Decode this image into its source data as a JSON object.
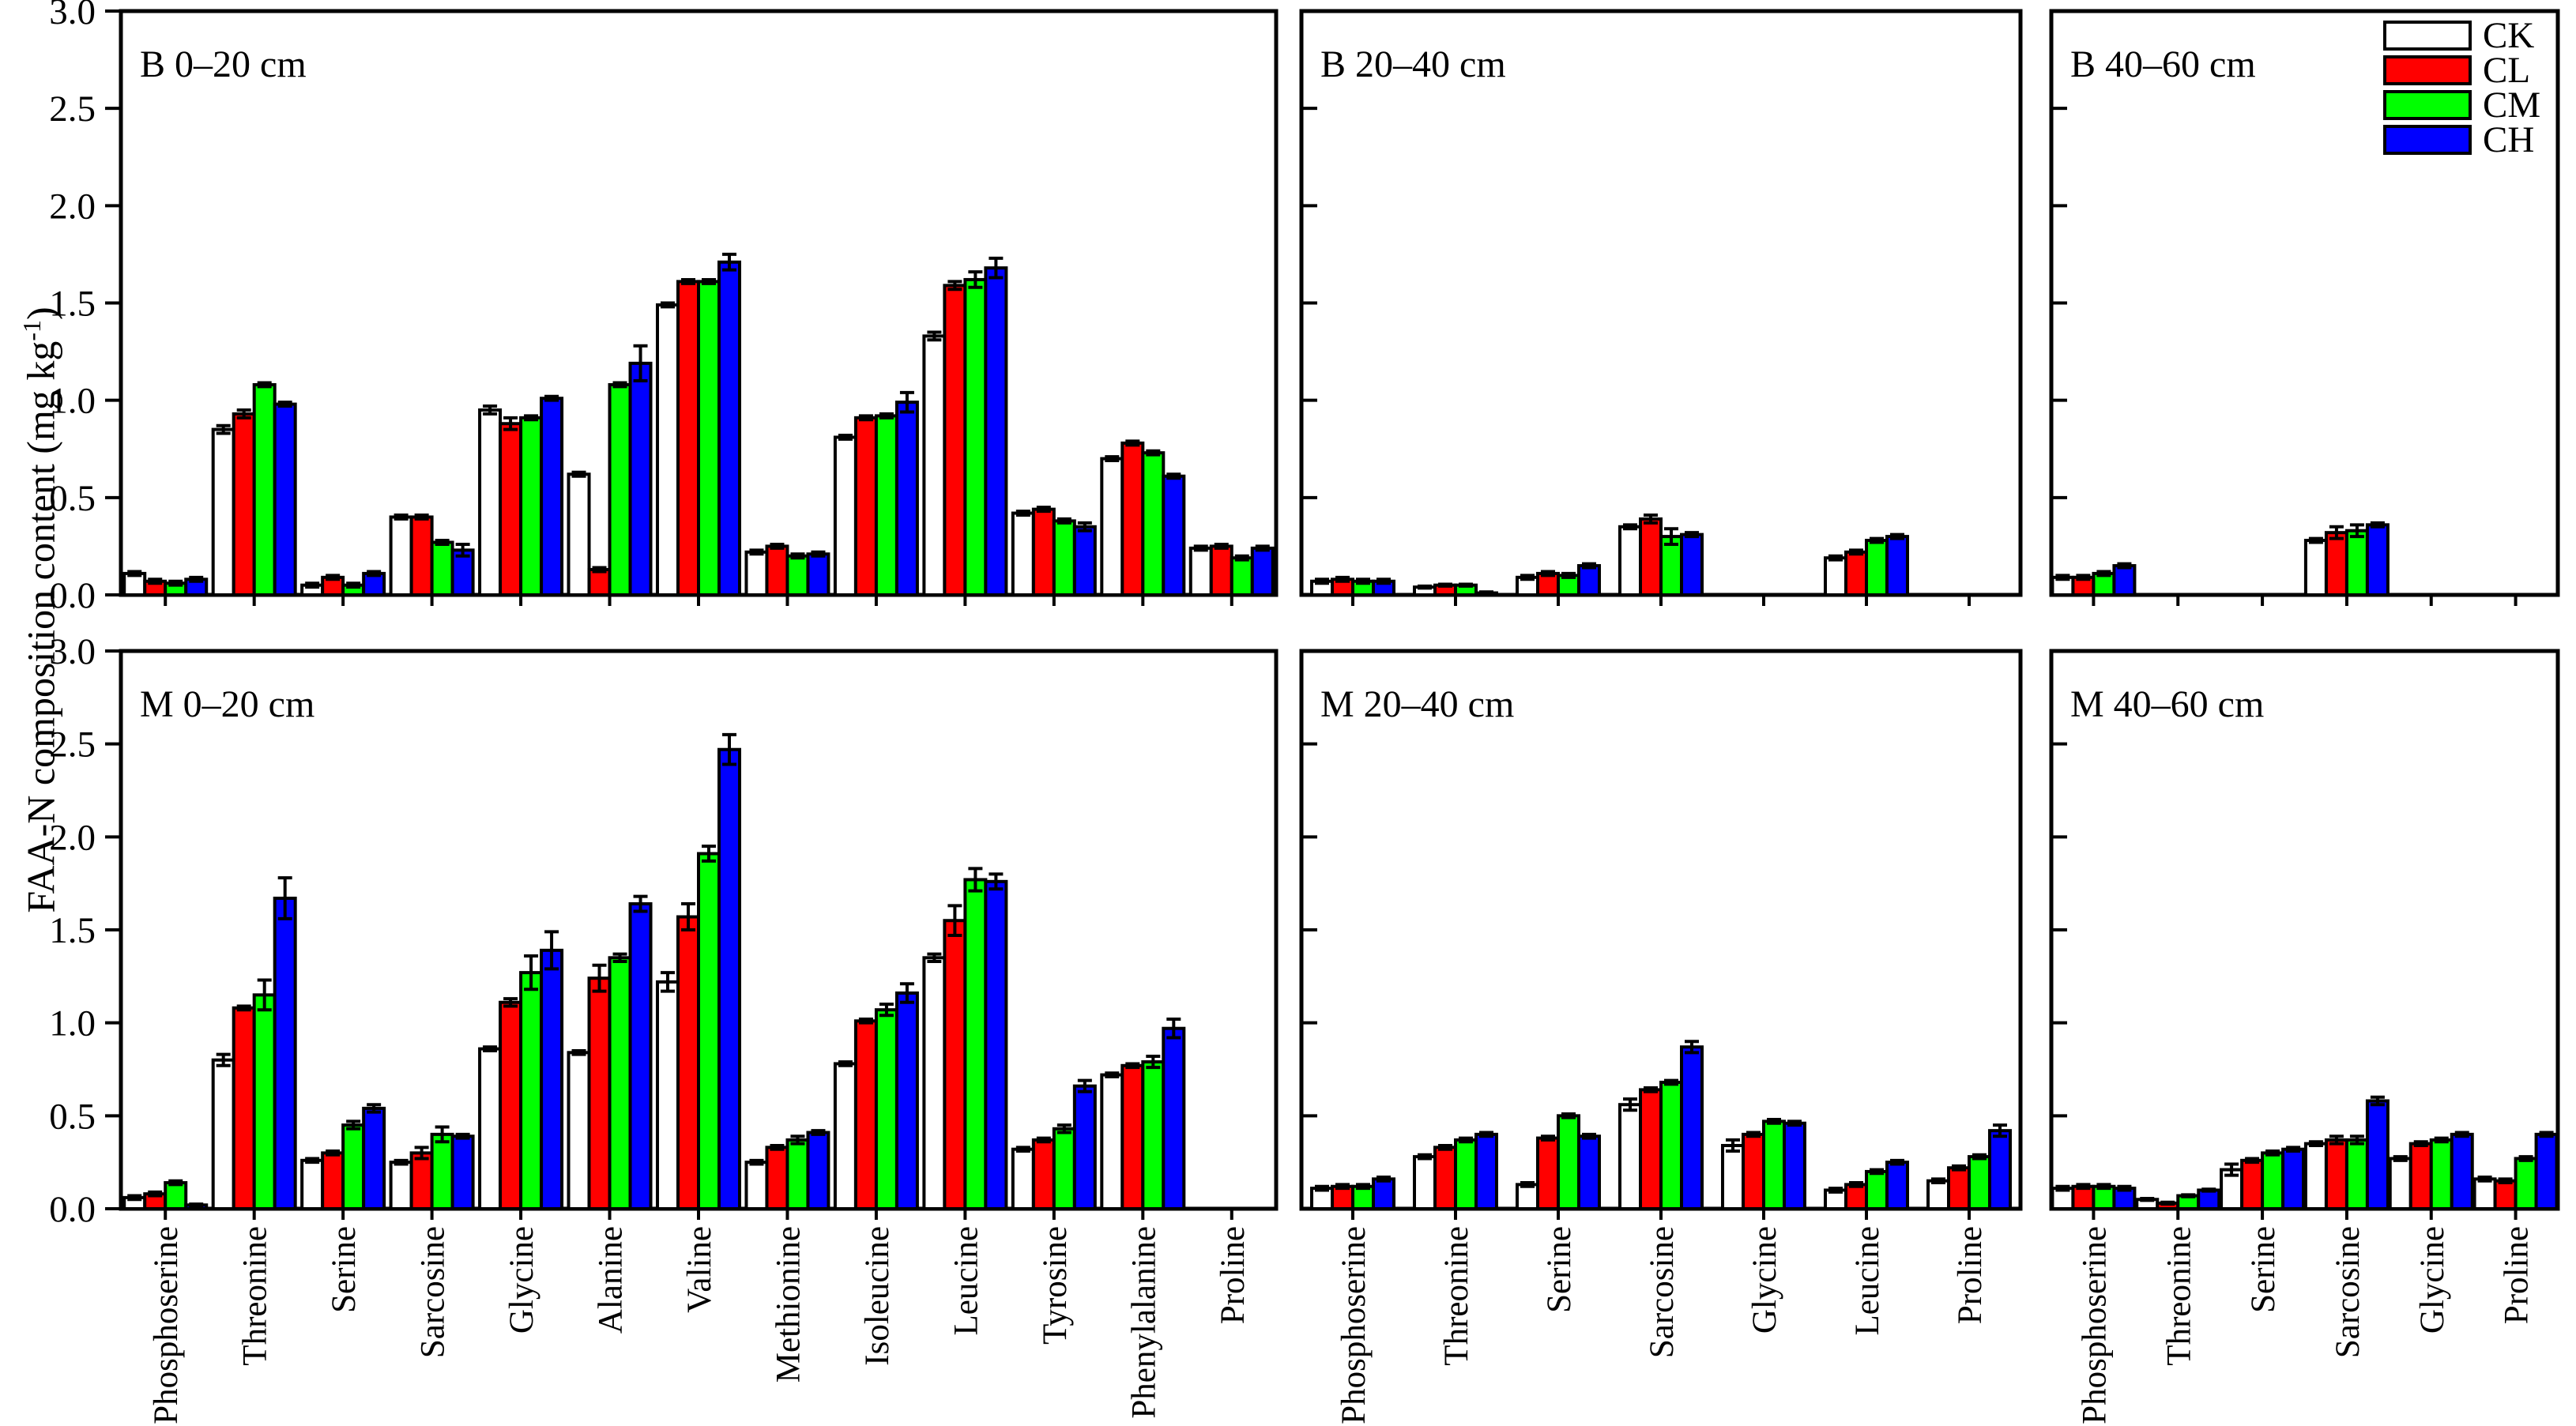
{
  "figure": {
    "y_axis_title_prefix": "FAA-N composition content (mg kg",
    "y_axis_title_sup": "-1",
    "y_axis_title_suffix": ")",
    "y_tick_labels": [
      "0.0",
      "0.5",
      "1.0",
      "1.5",
      "2.0",
      "2.5",
      "3.0"
    ],
    "ymin": 0,
    "ymax": 3
  },
  "legend": [
    {
      "label": "CK",
      "color": "#ffffff"
    },
    {
      "label": "CL",
      "color": "#ff0000"
    },
    {
      "label": "CM",
      "color": "#00ff00"
    },
    {
      "label": "CH",
      "color": "#0000ff"
    }
  ],
  "chart_data": [
    {
      "type": "bar",
      "title": "B 0–20 cm",
      "ylabel": "FAA-N composition content (mg kg-1)",
      "ylim": [
        0,
        3
      ],
      "categories": [
        "Phosphoserine",
        "Threonine",
        "Serine",
        "Sarcosine",
        "Glycine",
        "Alanine",
        "Valine",
        "Methionine",
        "Isoleucine",
        "Leucine",
        "Tyrosine",
        "Phenylalanine",
        "Proline"
      ],
      "series": [
        {
          "name": "CK",
          "color": "#ffffff",
          "values": [
            0.11,
            0.85,
            0.05,
            0.4,
            0.95,
            0.62,
            1.49,
            0.22,
            0.81,
            1.33,
            0.42,
            0.7,
            0.24
          ],
          "errors": [
            0.01,
            0.02,
            0.01,
            0.01,
            0.02,
            0.01,
            0.01,
            0.01,
            0.01,
            0.02,
            0.01,
            0.01,
            0.01
          ]
        },
        {
          "name": "CL",
          "color": "#ff0000",
          "values": [
            0.07,
            0.93,
            0.09,
            0.4,
            0.88,
            0.13,
            1.61,
            0.25,
            0.91,
            1.59,
            0.44,
            0.78,
            0.25
          ],
          "errors": [
            0.01,
            0.02,
            0.01,
            0.01,
            0.03,
            0.01,
            0.01,
            0.01,
            0.01,
            0.02,
            0.01,
            0.01,
            0.01
          ]
        },
        {
          "name": "CM",
          "color": "#00ff00",
          "values": [
            0.06,
            1.08,
            0.05,
            0.27,
            0.91,
            1.08,
            1.61,
            0.2,
            0.92,
            1.62,
            0.38,
            0.73,
            0.19
          ],
          "errors": [
            0.01,
            0.01,
            0.01,
            0.01,
            0.01,
            0.01,
            0.01,
            0.01,
            0.01,
            0.04,
            0.01,
            0.01,
            0.01
          ]
        },
        {
          "name": "CH",
          "color": "#0000ff",
          "values": [
            0.08,
            0.98,
            0.11,
            0.23,
            1.01,
            1.19,
            1.71,
            0.21,
            0.99,
            1.68,
            0.35,
            0.61,
            0.24
          ],
          "errors": [
            0.01,
            0.01,
            0.01,
            0.03,
            0.01,
            0.09,
            0.04,
            0.01,
            0.05,
            0.05,
            0.02,
            0.01,
            0.01
          ]
        }
      ]
    },
    {
      "type": "bar",
      "title": "B 20–40 cm",
      "ylim": [
        0,
        3
      ],
      "categories": [
        "Phosphoserine",
        "Threonine",
        "Serine",
        "Sarcosine",
        "Glycine",
        "Leucine",
        "Proline"
      ],
      "series": [
        {
          "name": "CK",
          "color": "#ffffff",
          "values": [
            0.07,
            0.04,
            0.09,
            0.35,
            null,
            0.19,
            null
          ],
          "errors": [
            0.01,
            0.005,
            0.01,
            0.01,
            null,
            0.01,
            null
          ]
        },
        {
          "name": "CL",
          "color": "#ff0000",
          "values": [
            0.08,
            0.05,
            0.11,
            0.39,
            null,
            0.22,
            null
          ],
          "errors": [
            0.01,
            0.005,
            0.01,
            0.02,
            null,
            0.01,
            null
          ]
        },
        {
          "name": "CM",
          "color": "#00ff00",
          "values": [
            0.07,
            0.05,
            0.1,
            0.3,
            null,
            0.28,
            null
          ],
          "errors": [
            0.01,
            0.005,
            0.01,
            0.04,
            null,
            0.01,
            null
          ]
        },
        {
          "name": "CH",
          "color": "#0000ff",
          "values": [
            0.07,
            0.01,
            0.15,
            0.31,
            null,
            0.3,
            null
          ],
          "errors": [
            0.01,
            0.005,
            0.01,
            0.01,
            null,
            0.01,
            null
          ]
        }
      ]
    },
    {
      "type": "bar",
      "title": "B 40–60 cm",
      "ylim": [
        0,
        3
      ],
      "categories": [
        "Phosphoserine",
        "Threonine",
        "Serine",
        "Sarcosine",
        "Glycine",
        "Proline"
      ],
      "series": [
        {
          "name": "CK",
          "color": "#ffffff",
          "values": [
            0.09,
            null,
            null,
            0.28,
            null,
            null
          ],
          "errors": [
            0.01,
            null,
            null,
            0.01,
            null,
            null
          ]
        },
        {
          "name": "CL",
          "color": "#ff0000",
          "values": [
            0.09,
            null,
            null,
            0.32,
            null,
            null
          ],
          "errors": [
            0.01,
            null,
            null,
            0.03,
            null,
            null
          ]
        },
        {
          "name": "CM",
          "color": "#00ff00",
          "values": [
            0.11,
            null,
            null,
            0.33,
            null,
            null
          ],
          "errors": [
            0.01,
            null,
            null,
            0.03,
            null,
            null
          ]
        },
        {
          "name": "CH",
          "color": "#0000ff",
          "values": [
            0.15,
            null,
            null,
            0.36,
            null,
            null
          ],
          "errors": [
            0.01,
            null,
            null,
            0.01,
            null,
            null
          ]
        }
      ]
    },
    {
      "type": "bar",
      "title": "M 0–20 cm",
      "ylim": [
        0,
        3
      ],
      "categories": [
        "Phosphoserine",
        "Threonine",
        "Serine",
        "Sarcosine",
        "Glycine",
        "Alanine",
        "Valine",
        "Methionine",
        "Isoleucine",
        "Leucine",
        "Tyrosine",
        "Phenylalanine",
        "Proline"
      ],
      "series": [
        {
          "name": "CK",
          "color": "#ffffff",
          "values": [
            0.06,
            0.8,
            0.26,
            0.25,
            0.86,
            0.84,
            1.22,
            0.25,
            0.78,
            1.35,
            0.32,
            0.72,
            null
          ],
          "errors": [
            0.01,
            0.03,
            0.01,
            0.01,
            0.01,
            0.01,
            0.05,
            0.01,
            0.01,
            0.02,
            0.01,
            0.01,
            null
          ]
        },
        {
          "name": "CL",
          "color": "#ff0000",
          "values": [
            0.08,
            1.08,
            0.3,
            0.3,
            1.11,
            1.24,
            1.57,
            0.33,
            1.01,
            1.55,
            0.37,
            0.77,
            null
          ],
          "errors": [
            0.01,
            0.01,
            0.01,
            0.03,
            0.02,
            0.07,
            0.07,
            0.01,
            0.01,
            0.08,
            0.01,
            0.01,
            null
          ]
        },
        {
          "name": "CM",
          "color": "#00ff00",
          "values": [
            0.14,
            1.15,
            0.45,
            0.4,
            1.27,
            1.35,
            1.91,
            0.37,
            1.07,
            1.77,
            0.43,
            0.79,
            null
          ],
          "errors": [
            0.01,
            0.08,
            0.02,
            0.04,
            0.09,
            0.02,
            0.04,
            0.02,
            0.03,
            0.06,
            0.02,
            0.03,
            null
          ]
        },
        {
          "name": "CH",
          "color": "#0000ff",
          "values": [
            0.02,
            1.67,
            0.54,
            0.39,
            1.39,
            1.64,
            2.47,
            0.41,
            1.16,
            1.76,
            0.66,
            0.97,
            null
          ],
          "errors": [
            0.005,
            0.11,
            0.02,
            0.01,
            0.1,
            0.04,
            0.08,
            0.01,
            0.05,
            0.04,
            0.03,
            0.05,
            null
          ]
        }
      ]
    },
    {
      "type": "bar",
      "title": "M 20–40 cm",
      "ylim": [
        0,
        3
      ],
      "categories": [
        "Phosphoserine",
        "Threonine",
        "Serine",
        "Sarcosine",
        "Glycine",
        "Leucine",
        "Proline"
      ],
      "series": [
        {
          "name": "CK",
          "color": "#ffffff",
          "values": [
            0.11,
            0.28,
            0.13,
            0.56,
            0.34,
            0.1,
            0.15
          ],
          "errors": [
            0.01,
            0.01,
            0.01,
            0.03,
            0.03,
            0.01,
            0.01
          ]
        },
        {
          "name": "CL",
          "color": "#ff0000",
          "values": [
            0.12,
            0.33,
            0.38,
            0.64,
            0.4,
            0.13,
            0.22
          ],
          "errors": [
            0.01,
            0.01,
            0.01,
            0.01,
            0.01,
            0.01,
            0.01
          ]
        },
        {
          "name": "CM",
          "color": "#00ff00",
          "values": [
            0.12,
            0.37,
            0.5,
            0.68,
            0.47,
            0.2,
            0.28
          ],
          "errors": [
            0.01,
            0.01,
            0.01,
            0.01,
            0.01,
            0.01,
            0.01
          ]
        },
        {
          "name": "CH",
          "color": "#0000ff",
          "values": [
            0.16,
            0.4,
            0.39,
            0.87,
            0.46,
            0.25,
            0.42
          ],
          "errors": [
            0.01,
            0.01,
            0.01,
            0.03,
            0.01,
            0.01,
            0.03
          ]
        }
      ]
    },
    {
      "type": "bar",
      "title": "M 40–60 cm",
      "ylim": [
        0,
        3
      ],
      "categories": [
        "Phosphoserine",
        "Threonine",
        "Serine",
        "Sarcosine",
        "Glycine",
        "Proline"
      ],
      "series": [
        {
          "name": "CK",
          "color": "#ffffff",
          "values": [
            0.11,
            0.05,
            0.21,
            0.35,
            0.27,
            0.16
          ],
          "errors": [
            0.01,
            0.005,
            0.03,
            0.01,
            0.01,
            0.01
          ]
        },
        {
          "name": "CL",
          "color": "#ff0000",
          "values": [
            0.12,
            0.03,
            0.26,
            0.37,
            0.35,
            0.15
          ],
          "errors": [
            0.01,
            0.005,
            0.01,
            0.02,
            0.01,
            0.01
          ]
        },
        {
          "name": "CM",
          "color": "#00ff00",
          "values": [
            0.12,
            0.07,
            0.3,
            0.37,
            0.37,
            0.27
          ],
          "errors": [
            0.01,
            0.005,
            0.01,
            0.02,
            0.01,
            0.01
          ]
        },
        {
          "name": "CH",
          "color": "#0000ff",
          "values": [
            0.11,
            0.1,
            0.32,
            0.58,
            0.4,
            0.4
          ],
          "errors": [
            0.01,
            0.005,
            0.01,
            0.02,
            0.01,
            0.01
          ]
        }
      ]
    }
  ]
}
